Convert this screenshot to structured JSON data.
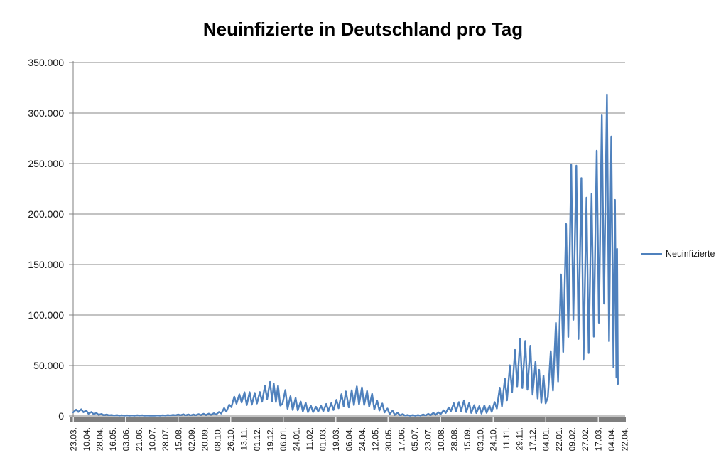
{
  "page": {
    "background": "#ffffff"
  },
  "chart_data": {
    "type": "line",
    "title": "Neuinfizierte in Deutschland pro Tag",
    "xlabel": "",
    "ylabel": "",
    "ylim": [
      0,
      350000
    ],
    "grid": true,
    "legend_position": "right",
    "gridline_color": "#878787",
    "axis_color": "#7f7f7f",
    "text_color": "#1a1a1a",
    "x_total_points": 757,
    "x_tick_every": 18,
    "x_tick_labels": [
      "23.03.",
      "10.04.",
      "28.04.",
      "16.05.",
      "03.06.",
      "21.06.",
      "10.07.",
      "28.07.",
      "15.08.",
      "02.09.",
      "20.09.",
      "08.10.",
      "26.10.",
      "13.11.",
      "01.12.",
      "19.12.",
      "06.01.",
      "24.01.",
      "11.02.",
      "01.03.",
      "19.03.",
      "06.04.",
      "24.04.",
      "12.05.",
      "30.05.",
      "17.06.",
      "05.07.",
      "23.07.",
      "10.08.",
      "28.08.",
      "15.09.",
      "03.10.",
      "24.10.",
      "11.11.",
      "29.11.",
      "17.12.",
      "04.01.",
      "22.01.",
      "09.02.",
      "27.02.",
      "17.03.",
      "04.04.",
      "22.04."
    ],
    "y_ticks": [
      {
        "value": 0,
        "label": "0"
      },
      {
        "value": 50000,
        "label": "50.000"
      },
      {
        "value": 100000,
        "label": "100.000"
      },
      {
        "value": 150000,
        "label": "150.000"
      },
      {
        "value": 200000,
        "label": "200.000"
      },
      {
        "value": 250000,
        "label": "250.000"
      },
      {
        "value": 300000,
        "label": "300.000"
      },
      {
        "value": 350000,
        "label": "350.000"
      }
    ],
    "series": [
      {
        "name": "Neuinfizierte",
        "color": "#4F81BD",
        "points": [
          [
            0,
            3600
          ],
          [
            4,
            6300
          ],
          [
            7,
            4000
          ],
          [
            11,
            6600
          ],
          [
            14,
            3700
          ],
          [
            18,
            5400
          ],
          [
            21,
            2200
          ],
          [
            25,
            4000
          ],
          [
            28,
            1800
          ],
          [
            32,
            2900
          ],
          [
            35,
            1200
          ],
          [
            39,
            2000
          ],
          [
            42,
            800
          ],
          [
            46,
            1500
          ],
          [
            49,
            600
          ],
          [
            53,
            1000
          ],
          [
            56,
            450
          ],
          [
            60,
            900
          ],
          [
            63,
            350
          ],
          [
            67,
            700
          ],
          [
            70,
            300
          ],
          [
            74,
            600
          ],
          [
            77,
            250
          ],
          [
            81,
            550
          ],
          [
            84,
            300
          ],
          [
            88,
            800
          ],
          [
            91,
            400
          ],
          [
            95,
            700
          ],
          [
            98,
            300
          ],
          [
            102,
            500
          ],
          [
            105,
            250
          ],
          [
            109,
            450
          ],
          [
            112,
            250
          ],
          [
            116,
            530
          ],
          [
            119,
            350
          ],
          [
            123,
            800
          ],
          [
            126,
            400
          ],
          [
            130,
            900
          ],
          [
            133,
            500
          ],
          [
            137,
            1100
          ],
          [
            140,
            600
          ],
          [
            144,
            1450
          ],
          [
            147,
            700
          ],
          [
            151,
            1700
          ],
          [
            154,
            600
          ],
          [
            158,
            1570
          ],
          [
            161,
            600
          ],
          [
            165,
            1450
          ],
          [
            168,
            700
          ],
          [
            172,
            1800
          ],
          [
            175,
            900
          ],
          [
            179,
            2200
          ],
          [
            182,
            1000
          ],
          [
            186,
            2300
          ],
          [
            189,
            1200
          ],
          [
            193,
            2700
          ],
          [
            196,
            1400
          ],
          [
            200,
            4000
          ],
          [
            203,
            2500
          ],
          [
            207,
            7800
          ],
          [
            210,
            4300
          ],
          [
            214,
            11200
          ],
          [
            217,
            8700
          ],
          [
            221,
            19100
          ],
          [
            224,
            12100
          ],
          [
            228,
            21500
          ],
          [
            231,
            13400
          ],
          [
            235,
            23500
          ],
          [
            238,
            10800
          ],
          [
            242,
            23600
          ],
          [
            245,
            11200
          ],
          [
            249,
            22800
          ],
          [
            252,
            12300
          ],
          [
            256,
            23700
          ],
          [
            259,
            14100
          ],
          [
            263,
            29900
          ],
          [
            266,
            16600
          ],
          [
            270,
            33700
          ],
          [
            273,
            14500
          ],
          [
            275,
            32200
          ],
          [
            278,
            13800
          ],
          [
            281,
            30000
          ],
          [
            284,
            10300
          ],
          [
            287,
            12000
          ],
          [
            291,
            25700
          ],
          [
            294,
            7100
          ],
          [
            298,
            19600
          ],
          [
            301,
            6000
          ],
          [
            305,
            17900
          ],
          [
            308,
            5600
          ],
          [
            312,
            14200
          ],
          [
            315,
            4500
          ],
          [
            319,
            12900
          ],
          [
            322,
            3800
          ],
          [
            326,
            10200
          ],
          [
            329,
            3900
          ],
          [
            333,
            9100
          ],
          [
            336,
            4300
          ],
          [
            340,
            9900
          ],
          [
            343,
            4700
          ],
          [
            347,
            11900
          ],
          [
            350,
            5000
          ],
          [
            354,
            12700
          ],
          [
            357,
            5900
          ],
          [
            361,
            16000
          ],
          [
            364,
            7700
          ],
          [
            368,
            21600
          ],
          [
            371,
            9500
          ],
          [
            374,
            24300
          ],
          [
            378,
            8500
          ],
          [
            382,
            25500
          ],
          [
            385,
            10800
          ],
          [
            389,
            29400
          ],
          [
            392,
            11400
          ],
          [
            396,
            28300
          ],
          [
            399,
            10900
          ],
          [
            403,
            24700
          ],
          [
            406,
            9200
          ],
          [
            410,
            21900
          ],
          [
            413,
            6500
          ],
          [
            417,
            14900
          ],
          [
            420,
            5400
          ],
          [
            424,
            12300
          ],
          [
            427,
            3500
          ],
          [
            431,
            7400
          ],
          [
            434,
            1900
          ],
          [
            438,
            5300
          ],
          [
            441,
            1100
          ],
          [
            445,
            3300
          ],
          [
            448,
            600
          ],
          [
            452,
            1800
          ],
          [
            455,
            400
          ],
          [
            459,
            1000
          ],
          [
            462,
            220
          ],
          [
            466,
            900
          ],
          [
            469,
            200
          ],
          [
            473,
            1000
          ],
          [
            476,
            300
          ],
          [
            480,
            1550
          ],
          [
            483,
            500
          ],
          [
            487,
            2100
          ],
          [
            490,
            800
          ],
          [
            494,
            3100
          ],
          [
            497,
            1200
          ],
          [
            501,
            3600
          ],
          [
            504,
            1800
          ],
          [
            508,
            5600
          ],
          [
            511,
            3000
          ],
          [
            515,
            8400
          ],
          [
            518,
            4700
          ],
          [
            522,
            12600
          ],
          [
            525,
            4700
          ],
          [
            529,
            13700
          ],
          [
            532,
            4800
          ],
          [
            536,
            15400
          ],
          [
            539,
            3800
          ],
          [
            543,
            12900
          ],
          [
            546,
            3000
          ],
          [
            550,
            10700
          ],
          [
            553,
            2900
          ],
          [
            557,
            9700
          ],
          [
            560,
            2400
          ],
          [
            564,
            10400
          ],
          [
            567,
            3100
          ],
          [
            571,
            10100
          ],
          [
            574,
            4100
          ],
          [
            578,
            13700
          ],
          [
            581,
            7300
          ],
          [
            585,
            28000
          ],
          [
            588,
            9600
          ],
          [
            592,
            37100
          ],
          [
            595,
            15500
          ],
          [
            599,
            50200
          ],
          [
            602,
            23600
          ],
          [
            606,
            65400
          ],
          [
            609,
            29300
          ],
          [
            613,
            76400
          ],
          [
            616,
            27700
          ],
          [
            620,
            74300
          ],
          [
            623,
            26000
          ],
          [
            627,
            69600
          ],
          [
            630,
            21100
          ],
          [
            634,
            53600
          ],
          [
            637,
            17300
          ],
          [
            639,
            45700
          ],
          [
            642,
            13000
          ],
          [
            645,
            40000
          ],
          [
            648,
            12500
          ],
          [
            651,
            18500
          ],
          [
            655,
            64300
          ],
          [
            658,
            25200
          ],
          [
            662,
            92200
          ],
          [
            665,
            34100
          ],
          [
            669,
            140200
          ],
          [
            672,
            63400
          ],
          [
            676,
            190100
          ],
          [
            679,
            78300
          ],
          [
            683,
            248800
          ],
          [
            686,
            95300
          ],
          [
            690,
            247900
          ],
          [
            693,
            76300
          ],
          [
            697,
            235600
          ],
          [
            700,
            56300
          ],
          [
            704,
            216300
          ],
          [
            707,
            62300
          ],
          [
            711,
            220000
          ],
          [
            714,
            78500
          ],
          [
            718,
            262700
          ],
          [
            721,
            92300
          ],
          [
            725,
            297800
          ],
          [
            728,
            111200
          ],
          [
            732,
            318400
          ],
          [
            735,
            74000
          ],
          [
            738,
            276800
          ],
          [
            741,
            48000
          ],
          [
            743,
            214000
          ],
          [
            745,
            38000
          ],
          [
            746,
            165400
          ],
          [
            747,
            31700
          ]
        ]
      }
    ]
  }
}
